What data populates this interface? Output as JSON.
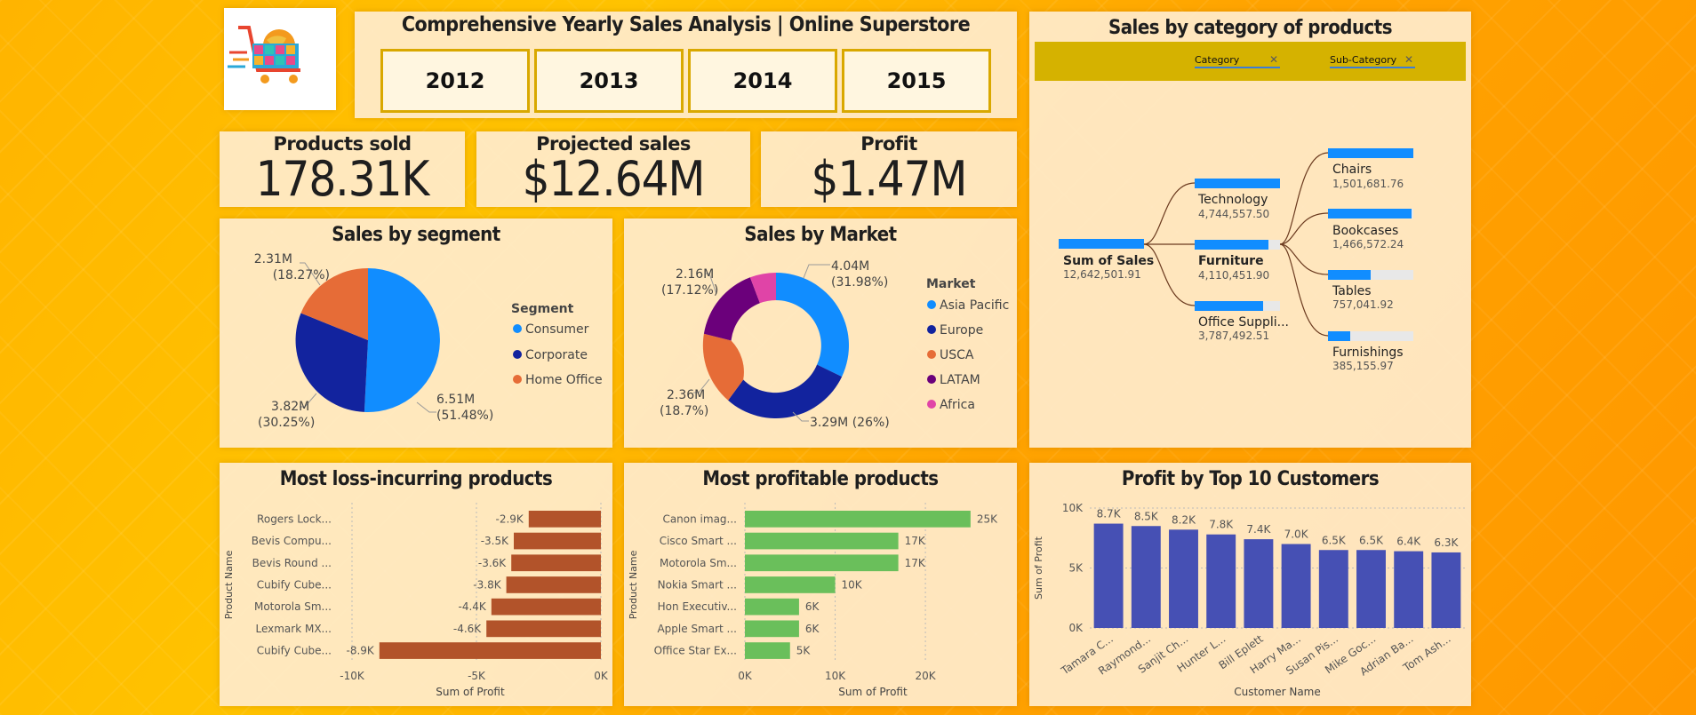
{
  "header": {
    "title": "Comprehensive Yearly Sales Analysis | Online Superstore",
    "years": [
      "2012",
      "2013",
      "2014",
      "2015"
    ]
  },
  "kpis": [
    {
      "title": "Products sold",
      "value": "178.31K"
    },
    {
      "title": "Projected sales",
      "value": "$12.64M"
    },
    {
      "title": "Profit",
      "value": "$1.47M"
    }
  ],
  "segment": {
    "title": "Sales by segment",
    "legend_title": "Segment",
    "legend": [
      {
        "label": "Consumer",
        "color": "#118dff"
      },
      {
        "label": "Corporate",
        "color": "#12239e"
      },
      {
        "label": "Home Office",
        "color": "#e66c37"
      }
    ],
    "labels": {
      "consumer_value": "6.51M",
      "consumer_pct": "(51.48%)",
      "corporate_value": "3.82M",
      "corporate_pct": "(30.25%)",
      "home_value": "2.31M",
      "home_pct": "(18.27%)"
    }
  },
  "market": {
    "title": "Sales by Market",
    "legend_title": "Market",
    "legend": [
      {
        "label": "Asia Pacific",
        "color": "#118dff"
      },
      {
        "label": "Europe",
        "color": "#12239e"
      },
      {
        "label": "USCA",
        "color": "#e66c37"
      },
      {
        "label": "LATAM",
        "color": "#6b007b"
      },
      {
        "label": "Africa",
        "color": "#e044a7"
      }
    ],
    "labels": {
      "asia_value": "4.04M",
      "asia_pct": "(31.98%)",
      "europe": "3.29M (26%)",
      "usca_value": "2.36M",
      "usca_pct": "(18.7%)",
      "latam_value": "2.16M",
      "latam_pct": "(17.12%)"
    }
  },
  "tree": {
    "title": "Sales by category of products",
    "filters": [
      "Category",
      "Sub-Category"
    ],
    "root": {
      "label": "Sum of Sales",
      "value": "12,642,501.91"
    },
    "categories": [
      {
        "label": "Technology",
        "value": "4,744,557.50"
      },
      {
        "label": "Furniture",
        "value": "4,110,451.90"
      },
      {
        "label": "Office Suppli...",
        "value": "3,787,492.51"
      }
    ],
    "subcategories": [
      {
        "label": "Chairs",
        "value": "1,501,681.76"
      },
      {
        "label": "Bookcases",
        "value": "1,466,572.24"
      },
      {
        "label": "Tables",
        "value": "757,041.92"
      },
      {
        "label": "Furnishings",
        "value": "385,155.97"
      }
    ]
  },
  "colors": {
    "loss": "#b2532a",
    "profit": "#6abf5b",
    "customers": "#4650b4",
    "tree_bar": "#118dff"
  },
  "chart_data": [
    {
      "type": "pie",
      "title": "Sales by segment",
      "categories": [
        "Consumer",
        "Corporate",
        "Home Office"
      ],
      "values": [
        6.51,
        3.82,
        2.31
      ],
      "unit": "M"
    },
    {
      "type": "pie",
      "title": "Sales by Market",
      "categories": [
        "Asia Pacific",
        "Europe",
        "USCA",
        "LATAM",
        "Africa"
      ],
      "values": [
        4.04,
        3.29,
        2.36,
        2.16,
        0.79
      ],
      "unit": "M"
    },
    {
      "type": "bar",
      "orientation": "horizontal",
      "title": "Most loss-incurring products",
      "categories": [
        "Rogers Lock...",
        "Bevis Compu...",
        "Bevis Round ...",
        "Cubify Cube...",
        "Motorola Sm...",
        "Lexmark MX...",
        "Cubify Cube..."
      ],
      "values": [
        -2.9,
        -3.5,
        -3.6,
        -3.8,
        -4.4,
        -4.6,
        -8.9
      ],
      "data_labels": [
        "-2.9K",
        "-3.5K",
        "-3.6K",
        "-3.8K",
        "-4.4K",
        "-4.6K",
        "-8.9K"
      ],
      "xlabel": "Sum of Profit",
      "ylabel": "Product Name",
      "xlim": [
        -10,
        0
      ],
      "ticks": [
        {
          "v": -10,
          "label": "-10K"
        },
        {
          "v": -5,
          "label": "-5K"
        },
        {
          "v": 0,
          "label": "0K"
        }
      ]
    },
    {
      "type": "bar",
      "orientation": "horizontal",
      "title": "Most profitable products",
      "categories": [
        "Canon imag...",
        "Cisco Smart ...",
        "Motorola Sm...",
        "Nokia Smart ...",
        "Hon Executiv...",
        "Apple Smart ...",
        "Office Star Ex..."
      ],
      "values": [
        25,
        17,
        17,
        10,
        6,
        6,
        5
      ],
      "data_labels": [
        "25K",
        "17K",
        "17K",
        "10K",
        "6K",
        "6K",
        "5K"
      ],
      "xlabel": "Sum of Profit",
      "ylabel": "Product Name",
      "xlim": [
        0,
        26
      ],
      "ticks": [
        {
          "v": 0,
          "label": "0K"
        },
        {
          "v": 10,
          "label": "10K"
        },
        {
          "v": 20,
          "label": "20K"
        }
      ]
    },
    {
      "type": "bar",
      "title": "Profit by Top 10 Customers",
      "categories": [
        "Tamara C...",
        "Raymond...",
        "Sanjit Ch...",
        "Hunter L...",
        "Bill Eplett",
        "Harry Ma...",
        "Susan Pis...",
        "Mike Goc...",
        "Adrian Ba...",
        "Tom Ash..."
      ],
      "values": [
        8.7,
        8.5,
        8.2,
        7.8,
        7.4,
        7.0,
        6.5,
        6.5,
        6.4,
        6.3
      ],
      "data_labels": [
        "8.7K",
        "8.5K",
        "8.2K",
        "7.8K",
        "7.4K",
        "7.0K",
        "6.5K",
        "6.5K",
        "6.4K",
        "6.3K"
      ],
      "xlabel": "Customer Name",
      "ylabel": "Sum of Profit",
      "ylim": [
        0,
        10
      ],
      "ticks": [
        {
          "v": 0,
          "label": "0K"
        },
        {
          "v": 5,
          "label": "5K"
        },
        {
          "v": 10,
          "label": "10K"
        }
      ]
    }
  ]
}
